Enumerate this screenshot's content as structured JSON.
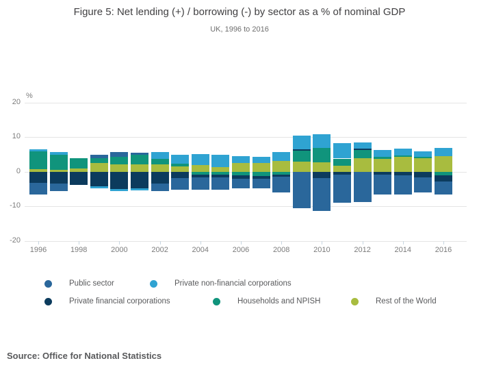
{
  "header": {
    "title": "Figure 5: Net lending (+) / borrowing (-) by sector as a % of nominal GDP",
    "subtitle": "UK, 1996 to 2016"
  },
  "source_text": "Source: Office for National Statistics",
  "chart_data": {
    "type": "bar",
    "stacked": true,
    "title": "Figure 5: Net lending (+) / borrowing (-) by sector as a % of nominal GDP",
    "subtitle": "UK, 1996 to 2016",
    "unit_label": "%",
    "ylim": [
      -20,
      20
    ],
    "y_ticks": [
      20,
      10,
      0,
      -10,
      -20
    ],
    "grid": true,
    "legend_position": "bottom",
    "x": [
      1996,
      1997,
      1998,
      1999,
      2000,
      2001,
      2002,
      2003,
      2004,
      2005,
      2006,
      2007,
      2008,
      2009,
      2010,
      2011,
      2012,
      2013,
      2014,
      2015,
      2016
    ],
    "x_axis_labels": [
      "1996",
      "1998",
      "2000",
      "2002",
      "2004",
      "2006",
      "2008",
      "2010",
      "2012",
      "2014",
      "2016"
    ],
    "stack_order_from_zero": [
      "Rest of the World",
      "Households and NPISH",
      "Private financial corporations",
      "Private non-financial corporations",
      "Public sector"
    ],
    "series": [
      {
        "name": "Public sector",
        "color": "#2a679b",
        "values": [
          -3.2,
          -2.0,
          0.0,
          1.0,
          1.5,
          0.6,
          -2.0,
          -3.3,
          -3.5,
          -3.6,
          -2.6,
          -2.6,
          -4.6,
          -10.5,
          -9.6,
          -8.0,
          -8.7,
          -5.6,
          -5.6,
          -4.3,
          -3.7
        ]
      },
      {
        "name": "Private non-financial corporations",
        "color": "#2fa3d2",
        "values": [
          0.7,
          0.8,
          0.0,
          -0.7,
          -0.5,
          -0.7,
          2.0,
          2.5,
          3.0,
          3.5,
          2.0,
          1.7,
          2.5,
          3.9,
          4.0,
          4.5,
          1.8,
          2.0,
          2.1,
          1.7,
          2.5
        ]
      },
      {
        "name": "Private financial corporations",
        "color": "#0c3b5d",
        "values": [
          -3.3,
          -3.5,
          -3.8,
          -4.1,
          -5.0,
          -4.7,
          -3.5,
          -1.8,
          -0.9,
          -0.7,
          -1.0,
          -0.8,
          -0.5,
          0.5,
          -1.8,
          -0.9,
          0.5,
          -0.9,
          -1.0,
          -1.7,
          -1.9
        ]
      },
      {
        "name": "Households and NPISH",
        "color": "#10947c",
        "values": [
          5.1,
          4.2,
          2.9,
          1.3,
          2.0,
          2.7,
          1.5,
          0.7,
          -0.8,
          -0.9,
          -1.1,
          -1.3,
          -0.9,
          3.0,
          4.1,
          2.1,
          2.3,
          0.4,
          0.3,
          0.3,
          -1.0
        ]
      },
      {
        "name": "Rest of the World",
        "color": "#a8bc3f",
        "values": [
          0.7,
          0.6,
          1.0,
          2.6,
          2.2,
          2.2,
          2.2,
          1.6,
          2.0,
          1.4,
          2.5,
          2.5,
          3.1,
          3.0,
          2.8,
          1.7,
          3.9,
          3.8,
          4.3,
          3.9,
          4.4
        ]
      }
    ]
  }
}
